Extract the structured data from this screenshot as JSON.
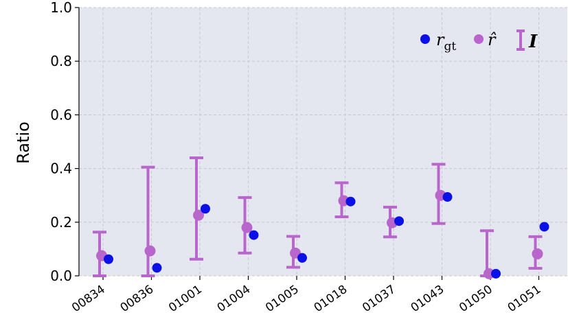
{
  "chart_data": {
    "type": "scatter",
    "title": "",
    "xlabel": "",
    "ylabel": "Ratio",
    "ylim": [
      0,
      1
    ],
    "yticks": [
      "0.0",
      "0.2",
      "0.4",
      "0.6",
      "0.8",
      "1.0"
    ],
    "grid": true,
    "legend_position": "top-right",
    "categories": [
      "00834",
      "00836",
      "01001",
      "01004",
      "01005",
      "01018",
      "01037",
      "01043",
      "01050",
      "01051"
    ],
    "series": [
      {
        "name": "r_gt",
        "kind": "point",
        "color": "#0a10e6",
        "values": [
          0.062,
          0.03,
          0.25,
          0.152,
          0.067,
          0.277,
          0.204,
          0.294,
          0.008,
          0.183
        ]
      },
      {
        "name": "r̂",
        "kind": "point",
        "color": "#b966cc",
        "values": [
          0.075,
          0.093,
          0.226,
          0.18,
          0.085,
          0.28,
          0.198,
          0.3,
          0.008,
          0.082
        ]
      },
      {
        "name": "I",
        "kind": "interval",
        "color": "#b966cc",
        "lower": [
          0.0,
          0.0,
          0.062,
          0.085,
          0.032,
          0.22,
          0.145,
          0.195,
          0.0,
          0.028
        ],
        "upper": [
          0.163,
          0.405,
          0.44,
          0.292,
          0.147,
          0.347,
          0.256,
          0.416,
          0.168,
          0.146
        ]
      }
    ],
    "legend": {
      "rgt_base": "r",
      "rgt_sub": "gt",
      "rhat": "r̂",
      "interval": "I"
    },
    "colors": {
      "plot_background": "#e5e7f0",
      "grid": "#c8c8c8"
    }
  }
}
